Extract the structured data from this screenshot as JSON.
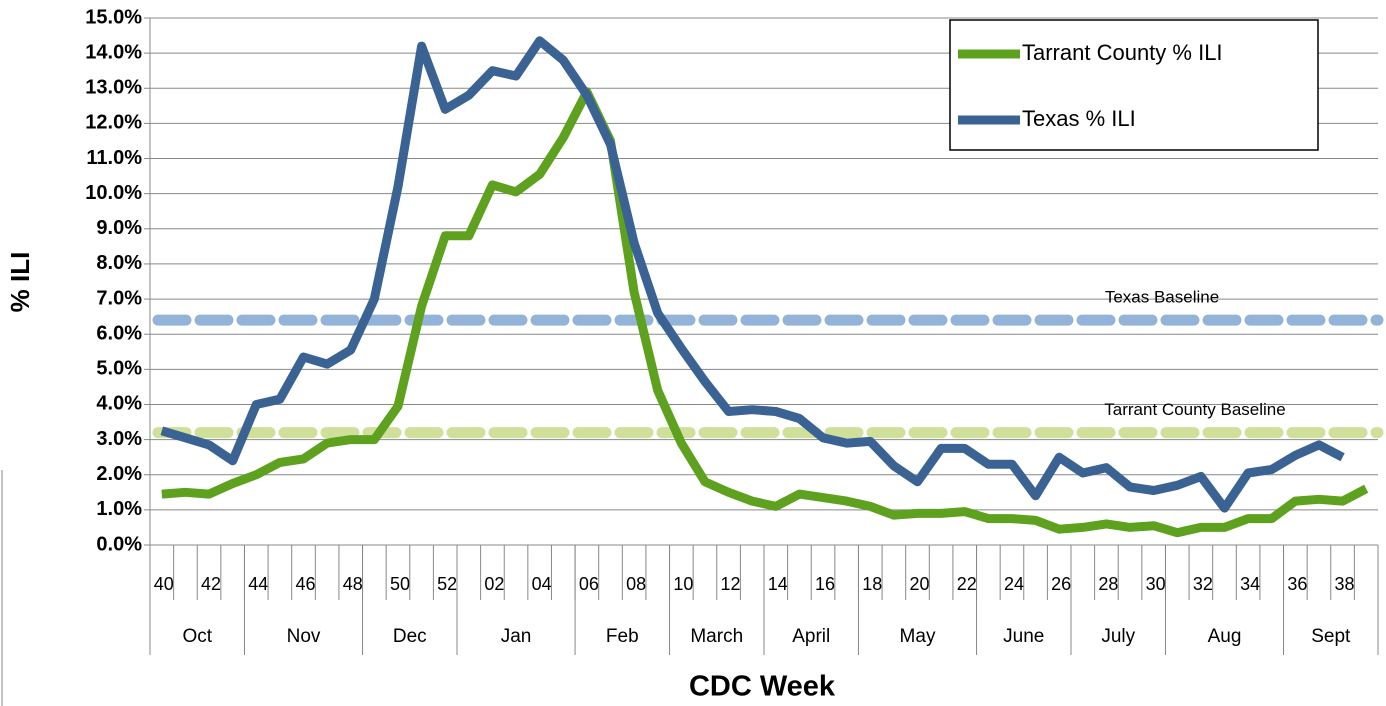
{
  "chart_data": {
    "type": "line",
    "y_label": "% ILI",
    "x_label": "CDC Week",
    "categories": [
      "40",
      null,
      "42",
      null,
      "44",
      null,
      "46",
      null,
      "48",
      null,
      "50",
      null,
      "52",
      null,
      "02",
      null,
      "04",
      null,
      "06",
      null,
      "08",
      null,
      "10",
      null,
      "12",
      null,
      "14",
      null,
      "16",
      null,
      "18",
      null,
      "20",
      null,
      "22",
      null,
      "24",
      null,
      "26",
      null,
      "28",
      null,
      "30",
      null,
      "32",
      null,
      "34",
      null,
      "36",
      null,
      "38",
      null
    ],
    "month_groups": [
      {
        "name": "Oct",
        "weeks": 4
      },
      {
        "name": "Nov",
        "weeks": 5
      },
      {
        "name": "Dec",
        "weeks": 4
      },
      {
        "name": "Jan",
        "weeks": 5
      },
      {
        "name": "Feb",
        "weeks": 4
      },
      {
        "name": "March",
        "weeks": 4
      },
      {
        "name": "April",
        "weeks": 4
      },
      {
        "name": "May",
        "weeks": 5
      },
      {
        "name": "June",
        "weeks": 4
      },
      {
        "name": "July",
        "weeks": 4
      },
      {
        "name": "Aug",
        "weeks": 5
      },
      {
        "name": "Sept",
        "weeks": 4
      }
    ],
    "series": [
      {
        "name": "Tarrant County % ILI",
        "color": "#5ea11f",
        "values": [
          1.45,
          1.5,
          1.45,
          1.75,
          2.0,
          2.35,
          2.45,
          2.9,
          3.0,
          3.0,
          3.95,
          6.8,
          8.8,
          8.8,
          10.25,
          10.05,
          10.55,
          11.6,
          12.9,
          11.5,
          7.2,
          4.4,
          2.9,
          1.8,
          1.5,
          1.25,
          1.1,
          1.45,
          1.35,
          1.25,
          1.1,
          0.85,
          0.9,
          0.9,
          0.95,
          0.75,
          0.75,
          0.7,
          0.45,
          0.5,
          0.6,
          0.5,
          0.55,
          0.35,
          0.5,
          0.5,
          0.75,
          0.75,
          1.25,
          1.3,
          1.25,
          1.6
        ]
      },
      {
        "name": "Texas % ILI",
        "color": "#3a6394",
        "values": [
          3.25,
          3.05,
          2.85,
          2.4,
          4.0,
          4.15,
          5.35,
          5.15,
          5.55,
          7.0,
          10.2,
          14.2,
          12.4,
          12.8,
          13.5,
          13.35,
          14.35,
          13.8,
          12.8,
          11.4,
          8.6,
          6.6,
          5.6,
          4.65,
          3.8,
          3.85,
          3.8,
          3.6,
          3.05,
          2.9,
          2.95,
          2.25,
          1.8,
          2.75,
          2.75,
          2.3,
          2.3,
          1.4,
          2.5,
          2.05,
          2.2,
          1.65,
          1.55,
          1.7,
          1.95,
          1.05,
          2.05,
          2.15,
          2.55,
          2.85,
          2.5,
          null
        ]
      }
    ],
    "baselines": [
      {
        "name": "Texas Baseline",
        "value": 6.4,
        "color": "#93b3d9"
      },
      {
        "name": "Tarrant County Baseline",
        "value": 3.2,
        "color": "#cfe09a"
      }
    ],
    "ylim": [
      0,
      15
    ],
    "yticks": [
      {
        "value": 0,
        "label": "0.0%"
      },
      {
        "value": 1,
        "label": "1.0%"
      },
      {
        "value": 2,
        "label": "2.0%"
      },
      {
        "value": 3,
        "label": "3.0%"
      },
      {
        "value": 4,
        "label": "4.0%"
      },
      {
        "value": 5,
        "label": "5.0%"
      },
      {
        "value": 6,
        "label": "6.0%"
      },
      {
        "value": 7,
        "label": "7.0%"
      },
      {
        "value": 8,
        "label": "8.0%"
      },
      {
        "value": 9,
        "label": "9.0%"
      },
      {
        "value": 10,
        "label": "10.0%"
      },
      {
        "value": 11,
        "label": "11.0%"
      },
      {
        "value": 12,
        "label": "12.0%"
      },
      {
        "value": 13,
        "label": "13.0%"
      },
      {
        "value": 14,
        "label": "14.0%"
      },
      {
        "value": 15,
        "label": "15.0%"
      }
    ],
    "grid": true,
    "legend": "top-right"
  }
}
